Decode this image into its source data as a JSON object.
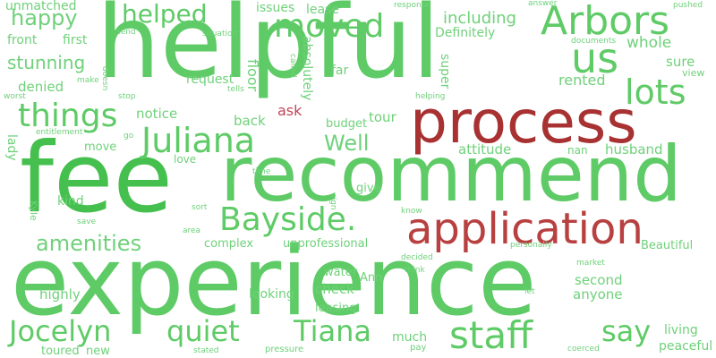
{
  "palette": {
    "green": "#5ecb66",
    "light_green": "#6fd17a",
    "deep_green": "#45c04e",
    "red": "#a83232",
    "muted_red": "#b84040",
    "rose": "#c0475a"
  },
  "words": {
    "helpful": "helpful",
    "experience": "experience",
    "recommend": "recommend",
    "fee": "fee",
    "process": "process",
    "application": "application",
    "bayside": "Bayside.",
    "arbors": "Arbors",
    "juliana": "Juliana",
    "staff": "staff",
    "moved": "moved",
    "us": "us",
    "things": "things",
    "lots": "lots",
    "jocelyn": "Jocelyn",
    "quiet": "quiet",
    "tiana": "Tiana",
    "say": "say",
    "helped": "helped",
    "happy": "happy",
    "amenities": "amenities",
    "well": "Well",
    "stunning": "stunning",
    "unmatched": "unmatched",
    "including": "including",
    "whole": "whole",
    "rented": "rented",
    "sure": "sure",
    "denied": "denied",
    "front": "front",
    "first": "first",
    "issues": "issues",
    "lease": "lease",
    "notice": "notice",
    "back": "back",
    "ask": "ask",
    "tour": "tour",
    "budget": "budget",
    "request": "request",
    "floor": "floor",
    "absolutely": "absolutely",
    "super": "super",
    "far": "far",
    "definitely": "Definitely",
    "attitude": "attitude",
    "husband": "husband",
    "nan": "nan",
    "love": "love",
    "move": "move",
    "lady": "lady",
    "kind": "kind",
    "give": "give",
    "complex": "complex",
    "unprofessional": "unprofessional",
    "check": "check",
    "water": "water",
    "ann": "Ann",
    "highly": "highly",
    "looking": "looking",
    "leasing": "leasing",
    "much": "much",
    "second": "second",
    "anyone": "anyone",
    "living": "living",
    "peaceful": "peaceful",
    "beautiful": "Beautiful",
    "toured": "toured",
    "new": "new",
    "stated": "stated",
    "pressure": "pressure",
    "pay": "pay",
    "coerced": "coerced",
    "decided": "decided",
    "think": "think",
    "let": "let",
    "market": "market",
    "personally": "personally",
    "know": "know",
    "sign": "sign",
    "time": "time",
    "sort": "sort",
    "area": "area",
    "save": "save",
    "kyle": "Kyle",
    "entitlement": "entitlement",
    "go": "go",
    "stop": "stop",
    "doesn": "doesn",
    "make": "make",
    "worst": "worst",
    "send": "send",
    "situation": "situation",
    "called": "called",
    "tells": "tells",
    "helping": "helping",
    "response": "response",
    "answer": "answer",
    "pushed": "pushed",
    "documents": "documents",
    "view": "view"
  }
}
